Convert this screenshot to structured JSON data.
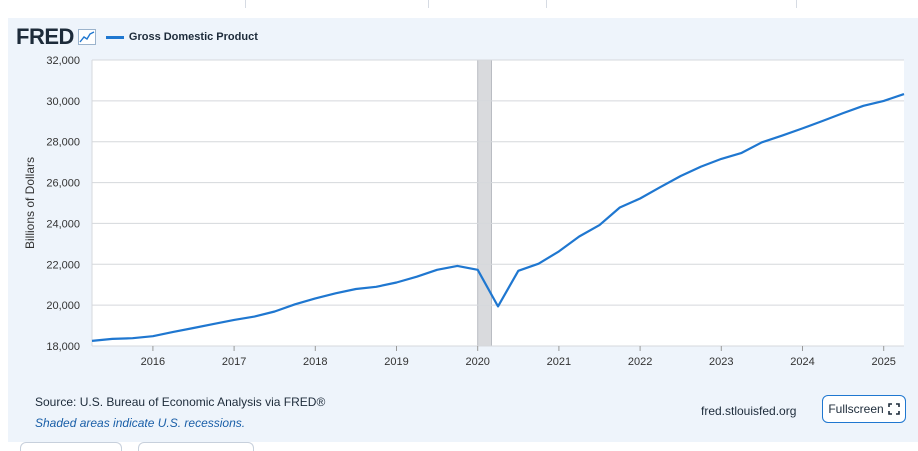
{
  "header": {
    "logo_text": "FRED",
    "logo_icon": "line-chart-icon",
    "legend_label": "Gross Domestic Product"
  },
  "footer": {
    "source": "Source: U.S. Bureau of Economic Analysis via FRED®",
    "note": "Shaded areas indicate U.S. recessions.",
    "site": "fred.stlouisfed.org",
    "fullscreen_label": "Fullscreen",
    "fullscreen_icon": "expand-icon"
  },
  "colors": {
    "line": "#1f77d0",
    "recession": "#d9dadd",
    "panel": "#eef4fb",
    "grid": "#d5d8dc"
  },
  "chart_data": {
    "type": "line",
    "title": "",
    "xlabel": "",
    "ylabel": "Billions of Dollars",
    "ylim": [
      18000,
      32000
    ],
    "yticks": [
      18000,
      20000,
      22000,
      24000,
      26000,
      28000,
      30000,
      32000
    ],
    "ytick_labels": [
      "18,000",
      "20,000",
      "22,000",
      "24,000",
      "26,000",
      "28,000",
      "30,000",
      "32,000"
    ],
    "xlim": [
      2015.25,
      2025.25
    ],
    "xticks": [
      2016,
      2017,
      2018,
      2019,
      2020,
      2021,
      2022,
      2023,
      2024,
      2025
    ],
    "xtick_labels": [
      "2016",
      "2017",
      "2018",
      "2019",
      "2020",
      "2021",
      "2022",
      "2023",
      "2024",
      "2025"
    ],
    "grid": true,
    "recessions": [
      [
        2020.0,
        2020.17
      ]
    ],
    "series": [
      {
        "name": "Gross Domestic Product",
        "x": [
          2015.25,
          2015.5,
          2015.75,
          2016.0,
          2016.25,
          2016.5,
          2016.75,
          2017.0,
          2017.25,
          2017.5,
          2017.75,
          2018.0,
          2018.25,
          2018.5,
          2018.75,
          2019.0,
          2019.25,
          2019.5,
          2019.75,
          2020.0,
          2020.25,
          2020.5,
          2020.75,
          2021.0,
          2021.25,
          2021.5,
          2021.75,
          2022.0,
          2022.25,
          2022.5,
          2022.75,
          2023.0,
          2023.25,
          2023.5,
          2023.75,
          2024.0,
          2024.25,
          2024.5,
          2024.75,
          2025.0,
          2025.25
        ],
        "values": [
          18250,
          18350,
          18380,
          18480,
          18690,
          18880,
          19080,
          19280,
          19440,
          19690,
          20040,
          20330,
          20580,
          20790,
          20900,
          21110,
          21390,
          21730,
          21920,
          21730,
          19940,
          21680,
          22030,
          22630,
          23360,
          23920,
          24780,
          25220,
          25780,
          26320,
          26780,
          27160,
          27450,
          27970,
          28300,
          28650,
          29020,
          29400,
          29760,
          30000,
          30330
        ]
      }
    ]
  }
}
